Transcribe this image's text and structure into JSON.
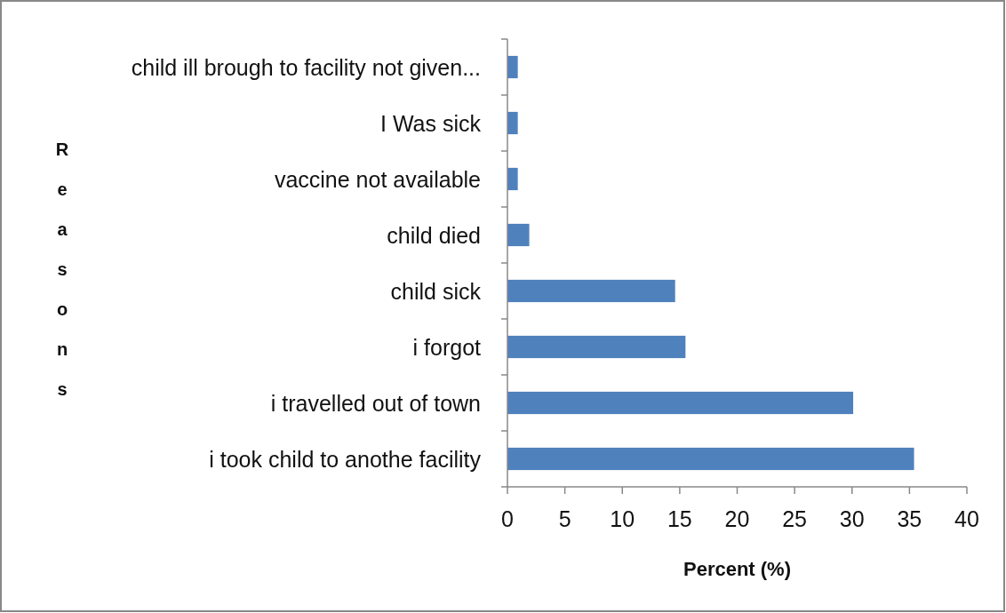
{
  "chart_data": {
    "type": "bar",
    "orientation": "horizontal",
    "xlabel": "Percent (%)",
    "ylabel": "Reasons",
    "categories": [
      "child ill brough to facility not given...",
      "I Was sick",
      "vaccine not available",
      "child died",
      "child sick",
      "i forgot",
      "i travelled out of town",
      "i took child to anothe facility"
    ],
    "values": [
      0.9,
      0.9,
      0.9,
      1.9,
      14.6,
      15.5,
      30.1,
      35.4
    ],
    "color": "#4f81bd",
    "xlim": [
      0,
      40
    ],
    "xticks": [
      0,
      5,
      10,
      15,
      20,
      25,
      30,
      35,
      40
    ],
    "grid": false
  }
}
